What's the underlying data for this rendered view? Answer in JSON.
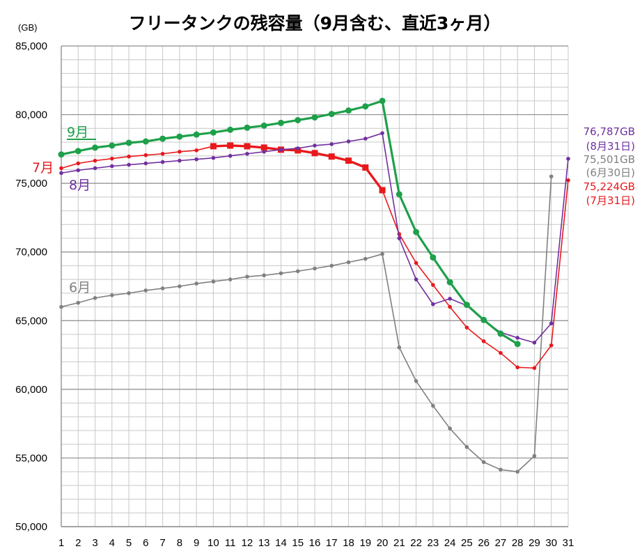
{
  "chart_data": {
    "type": "line",
    "title": "フリータンクの残容量（9月含む、直近3ヶ月）",
    "ylabel": "(GB)",
    "xlabel": "",
    "ylim": [
      50000,
      85000
    ],
    "yticks": [
      50000,
      55000,
      60000,
      65000,
      70000,
      75000,
      80000,
      85000
    ],
    "ytick_labels": [
      "50,000",
      "55,000",
      "60,000",
      "65,000",
      "70,000",
      "75,000",
      "80,000",
      "85,000"
    ],
    "x": [
      1,
      2,
      3,
      4,
      5,
      6,
      7,
      8,
      9,
      10,
      11,
      12,
      13,
      14,
      15,
      16,
      17,
      18,
      19,
      20,
      21,
      22,
      23,
      24,
      25,
      26,
      27,
      28,
      29,
      30,
      31
    ],
    "grid": true,
    "series": [
      {
        "name": "6月",
        "color": "#808080",
        "marker": "circle",
        "values": [
          66000,
          66300,
          66650,
          66850,
          67000,
          67200,
          67350,
          67500,
          67700,
          67850,
          68000,
          68200,
          68300,
          68450,
          68600,
          68800,
          69000,
          69250,
          69500,
          69850,
          63050,
          60600,
          58800,
          57150,
          55800,
          54700,
          54150,
          54000,
          55150,
          75501,
          null
        ]
      },
      {
        "name": "7月",
        "color": "#e8191c",
        "marker": "circle",
        "values": [
          76100,
          76450,
          76650,
          76800,
          76950,
          77050,
          77150,
          77300,
          77400,
          null,
          null,
          null,
          null,
          null,
          null,
          null,
          null,
          null,
          null,
          null,
          71300,
          69200,
          67600,
          66000,
          64500,
          63500,
          62650,
          61600,
          61550,
          63200,
          75224
        ],
        "highlight_marker": "square",
        "highlight_points": {
          "10": 77700,
          "11": 77750,
          "12": 77700,
          "13": 77600,
          "14": 77450,
          "15": 77400,
          "16": 77200,
          "17": 76950,
          "18": 76650,
          "19": 76150,
          "20": 74500
        }
      },
      {
        "name": "8月",
        "color": "#7030a0",
        "marker": "circle",
        "values": [
          75750,
          75950,
          76100,
          76250,
          76350,
          76450,
          76550,
          76650,
          76750,
          76850,
          77000,
          77150,
          77300,
          77450,
          77550,
          77750,
          77850,
          78050,
          78250,
          78650,
          71000,
          68000,
          66200,
          66600,
          66100,
          65000,
          64150,
          63750,
          63400,
          64800,
          76787
        ]
      },
      {
        "name": "9月",
        "color": "#1ea04a",
        "marker": "circle-large",
        "values": [
          77100,
          77350,
          77600,
          77750,
          77950,
          78050,
          78250,
          78400,
          78550,
          78700,
          78900,
          79050,
          79200,
          79400,
          79600,
          79800,
          80050,
          80300,
          80600,
          81000,
          74200,
          71450,
          69600,
          67800,
          66150,
          65050,
          64050,
          63300,
          null,
          null,
          null
        ]
      }
    ],
    "annotations": {
      "jul_label": "7月",
      "aug_label": "8月",
      "sep_label": "9月",
      "jun_label": "6月",
      "aug_end_value": "76,787GB",
      "aug_end_date": "(8月31日)",
      "jun_end_value": "75,501GB",
      "jun_end_date": "(6月30日)",
      "jul_end_value": "75,224GB",
      "jul_end_date": "(7月31日)"
    }
  }
}
